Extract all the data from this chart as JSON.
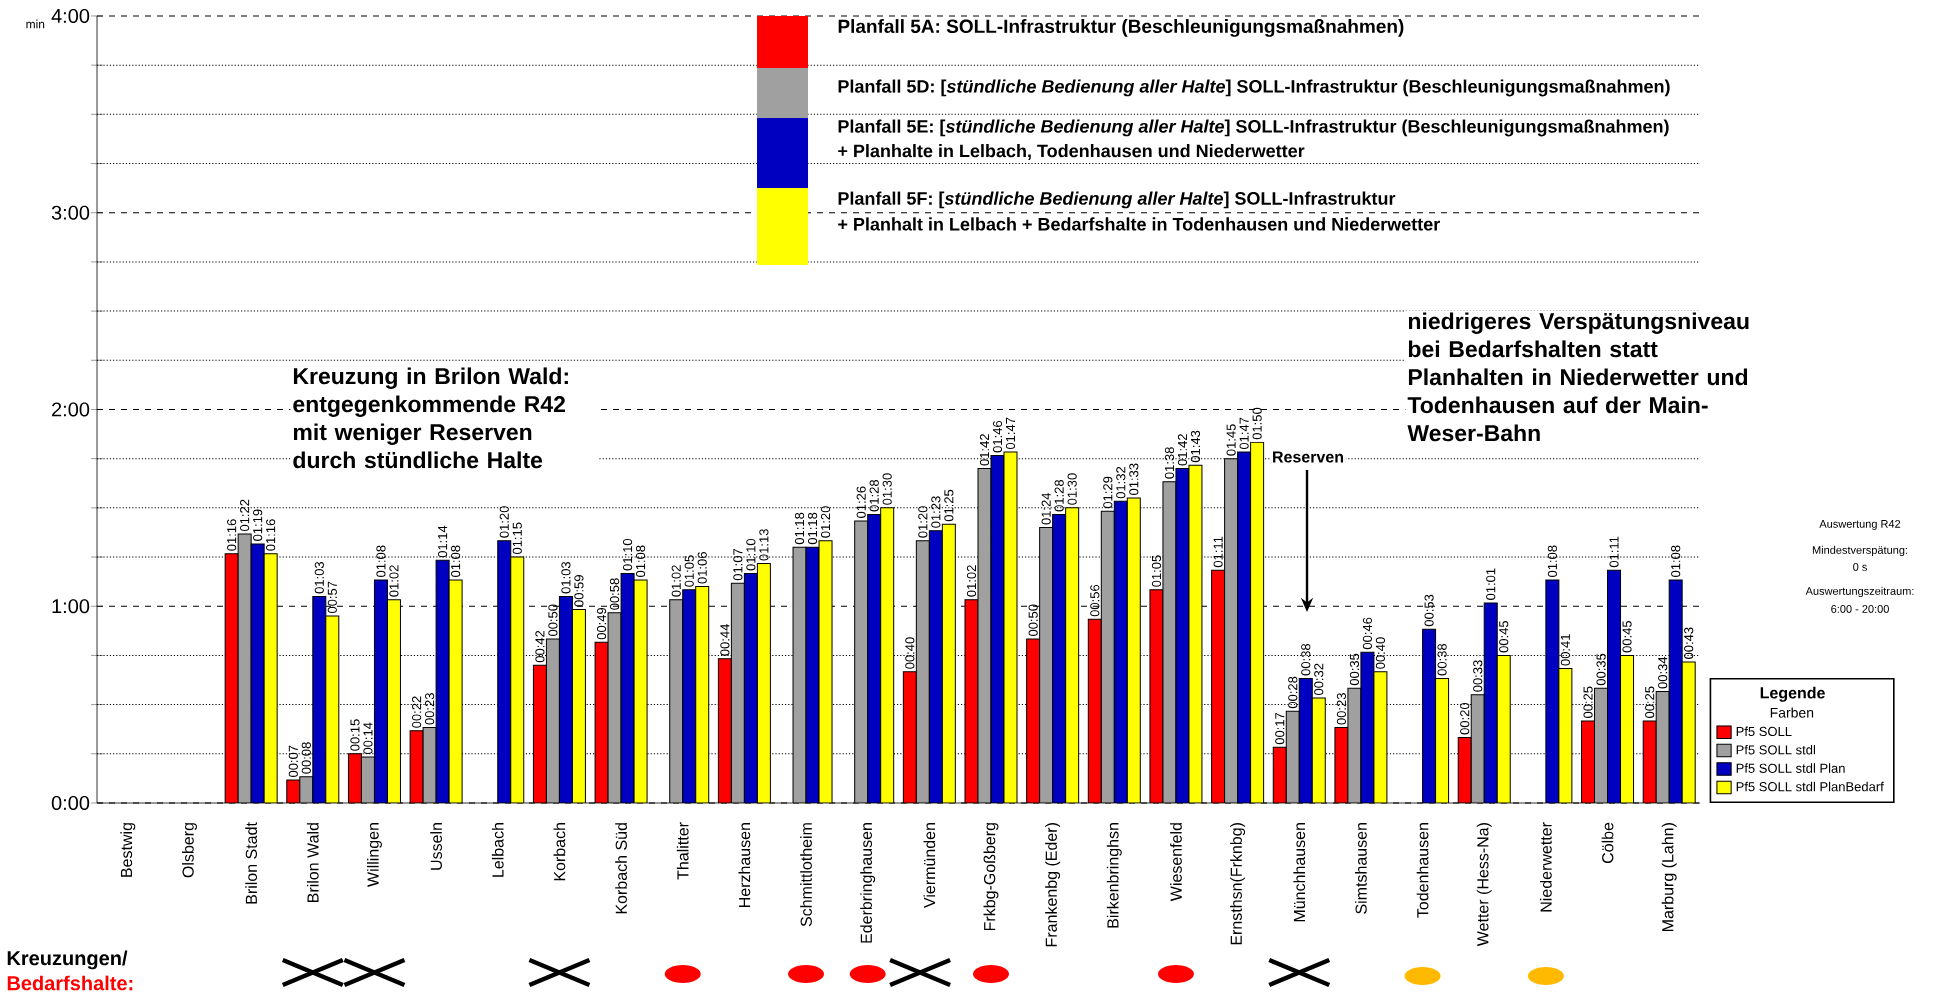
{
  "chart_data": {
    "type": "bar",
    "ylabel": "min",
    "legend_title": "Legende",
    "categories": [
      "Bestwig",
      "Olsberg",
      "Brilon Stadt",
      "Brilon Wald",
      "Willingen",
      "Usseln",
      "Lelbach",
      "Korbach",
      "Korbach Süd",
      "Thalitter",
      "Herzhausen",
      "Schmittlotheim",
      "Ederbringhausen",
      "Viermünden",
      "Frkbg-Goßberg",
      "Frankenbg (Eder)",
      "Birkenbringhsn",
      "Wiesenfeld",
      "Ernsthsn(Frknbg)",
      "Münchhausen",
      "Simtshausen",
      "Todenhausen",
      "Wetter (Hess-Na)",
      "Niederwetter",
      "Cölbe",
      "Marburg (Lahn)"
    ],
    "series": [
      {
        "name": "Pf5 SOLL",
        "color": "#ff0000",
        "values": [
          null,
          null,
          1.2667,
          0.1167,
          0.25,
          0.3667,
          null,
          0.7,
          0.8167,
          null,
          0.7333,
          null,
          null,
          0.6667,
          1.0333,
          0.8333,
          0.9333,
          1.0833,
          1.1833,
          0.2833,
          0.3833,
          null,
          0.3333,
          null,
          0.4167,
          0.4167
        ],
        "value_labels": [
          null,
          null,
          "01:16",
          "00:07",
          "00:15",
          "00:22",
          null,
          "00:42",
          "00:49",
          null,
          "00:44",
          null,
          null,
          "00:40",
          "01:02",
          "00:50",
          "00:56",
          "01:05",
          "01:11",
          "00:17",
          "00:23",
          null,
          "00:20",
          null,
          "00:25",
          "00:25"
        ]
      },
      {
        "name": "Pf5 SOLL stdl",
        "color": "#a0a0a0",
        "values": [
          null,
          null,
          1.3667,
          0.1333,
          0.2333,
          0.3833,
          null,
          0.8333,
          0.9667,
          1.0333,
          1.1167,
          1.3,
          1.4333,
          1.3333,
          1.7,
          1.4,
          1.4833,
          1.6333,
          1.75,
          0.4667,
          0.5833,
          null,
          0.55,
          null,
          0.5833,
          0.5667
        ],
        "value_labels": [
          null,
          null,
          "01:22",
          "00:08",
          "00:14",
          "00:23",
          null,
          "00:50",
          "00:58",
          "01:02",
          "01:07",
          "01:18",
          "01:26",
          "01:20",
          "01:42",
          "01:24",
          "01:29",
          "01:38",
          "01:45",
          "00:28",
          "00:35",
          null,
          "00:33",
          null,
          "00:35",
          "00:34"
        ]
      },
      {
        "name": "Pf5 SOLL stdl Plan",
        "color": "#0000c0",
        "values": [
          null,
          null,
          1.3167,
          1.05,
          1.1333,
          1.2333,
          1.3333,
          1.05,
          1.1667,
          1.0833,
          1.1667,
          1.3,
          1.4667,
          1.3833,
          1.7667,
          1.4667,
          1.5333,
          1.7,
          1.7833,
          0.6333,
          0.7667,
          0.8833,
          1.0167,
          1.1333,
          1.1833,
          1.1333
        ],
        "value_labels": [
          null,
          null,
          "01:19",
          "01:03",
          "01:08",
          "01:14",
          "01:20",
          "01:03",
          "01:10",
          "01:05",
          "01:10",
          "01:18",
          "01:28",
          "01:23",
          "01:46",
          "01:28",
          "01:32",
          "01:42",
          "01:47",
          "00:38",
          "00:46",
          "00:53",
          "01:01",
          "01:08",
          "01:11",
          "01:08"
        ]
      },
      {
        "name": "Pf5 SOLL stdl PlanBedarf",
        "color": "#ffff00",
        "values": [
          null,
          null,
          1.2667,
          0.95,
          1.0333,
          1.1333,
          1.25,
          0.9833,
          1.1333,
          1.1,
          1.2167,
          1.3333,
          1.5,
          1.4167,
          1.7833,
          1.5,
          1.55,
          1.7167,
          1.8333,
          0.5333,
          0.6667,
          0.6333,
          0.75,
          0.6833,
          0.75,
          0.7167
        ],
        "value_labels": [
          null,
          null,
          "01:16",
          "00:57",
          "01:02",
          "01:08",
          "01:15",
          "00:59",
          "01:08",
          "01:06",
          "01:13",
          "01:20",
          "01:30",
          "01:25",
          "01:47",
          "01:30",
          "01:33",
          "01:43",
          "01:50",
          "00:32",
          "00:40",
          "00:38",
          "00:45",
          "00:41",
          "00:45",
          "00:43"
        ]
      }
    ],
    "ylim": [
      0,
      4
    ],
    "yticks": [
      {
        "value": 0,
        "label": "0:00"
      },
      {
        "value": 0.25,
        "label": null
      },
      {
        "value": 0.5,
        "label": null
      },
      {
        "value": 0.75,
        "label": null
      },
      {
        "value": 1,
        "label": "1:00"
      },
      {
        "value": 1.25,
        "label": null
      },
      {
        "value": 1.5,
        "label": null
      },
      {
        "value": 1.75,
        "label": null
      },
      {
        "value": 2,
        "label": "2:00"
      },
      {
        "value": 2.25,
        "label": null
      },
      {
        "value": 2.5,
        "label": null
      },
      {
        "value": 2.75,
        "label": null
      },
      {
        "value": 3,
        "label": "3:00"
      },
      {
        "value": 3.25,
        "label": null
      },
      {
        "value": 3.5,
        "label": null
      },
      {
        "value": 3.75,
        "label": null
      },
      {
        "value": 4,
        "label": "4:00"
      }
    ],
    "grid": "y",
    "legend": "right",
    "annotations": [
      "Planfall 5A: SOLL-Infrastruktur (Beschleunigungsmaßnahmen)",
      "Planfall 5D: [*stündliche Bedienung aller Halte*] SOLL-Infrastruktur (Beschleunigungsmaßnahmen)",
      "Planfall 5E: [*stündliche Bedienung aller Halte*] SOLL-Infrastruktur (Beschleunigungsmaßnahmen)",
      "+ Planhalte in Lelbach, Todenhausen und Niederwetter",
      "Planfall 5F: [*stündliche Bedienung aller Halte*] SOLL-Infrastruktur",
      "+ Planhalt in Lelbach + Bedarfshalte in Todenhausen und Niederwetter",
      "Kreuzung in Brilon Wald: entgegenkommende R42 mit weniger Reserven durch stündliche Halte",
      "niedrigeres Verspätungsniveau bei Bedarfshalten statt Planhalten in Niederwetter und Todenhausen auf der Main-Weser-Bahn",
      "Reserven",
      "Auswertung R42",
      "Mindestverspätung:",
      "0 s",
      "Auswertungszeitraum:",
      "6:00 - 20:00",
      "Kreuzungen/",
      "Bedarfshalte:",
      "Farben"
    ]
  }
}
